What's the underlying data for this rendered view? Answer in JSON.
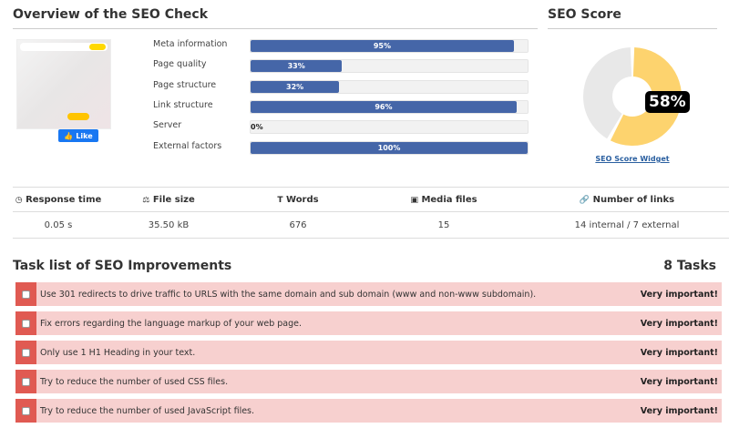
{
  "overview": {
    "title": "Overview of the SEO Check",
    "like_label": "Like",
    "metrics": [
      {
        "label": "Meta information",
        "percent": 95,
        "text": "95%"
      },
      {
        "label": "Page quality",
        "percent": 33,
        "text": "33%"
      },
      {
        "label": "Page structure",
        "percent": 32,
        "text": "32%"
      },
      {
        "label": "Link structure",
        "percent": 96,
        "text": "96%"
      },
      {
        "label": "Server",
        "percent": 0,
        "text": "0%"
      },
      {
        "label": "External factors",
        "percent": 100,
        "text": "100%"
      }
    ],
    "bar_color": "#4566a8"
  },
  "score": {
    "title": "SEO Score",
    "value": 58,
    "text": "58%",
    "widget_link": "SEO Score Widget",
    "fill_color": "#fdd36e",
    "rest_color": "#e8e8e8"
  },
  "stats": {
    "headers": [
      {
        "icon": "clock-icon",
        "glyph": "◷",
        "label": "Response time"
      },
      {
        "icon": "scale-icon",
        "glyph": "⚖",
        "label": "File size"
      },
      {
        "icon": "text-icon",
        "glyph": "T",
        "label": "Words"
      },
      {
        "icon": "image-icon",
        "glyph": "▣",
        "label": "Media files"
      },
      {
        "icon": "link-icon",
        "glyph": "🔗",
        "label": "Number of links"
      }
    ],
    "values": [
      "0.05 s",
      "35.50 kB",
      "676",
      "15",
      "14 internal / 7 external"
    ]
  },
  "tasks": {
    "title": "Task list of SEO Improvements",
    "count": "8 Tasks",
    "items": [
      {
        "text": "Use 301 redirects to drive traffic to URLS with the same domain and sub domain (www and non-www subdomain).",
        "priority": "Very important!"
      },
      {
        "text": "Fix errors regarding the language markup of your web page.",
        "priority": "Very important!"
      },
      {
        "text": "Only use 1 H1 Heading in your text.",
        "priority": "Very important!"
      },
      {
        "text": "Try to reduce the number of used CSS files.",
        "priority": "Very important!"
      },
      {
        "text": "Try to reduce the number of used JavaScript files.",
        "priority": "Very important!"
      }
    ]
  }
}
